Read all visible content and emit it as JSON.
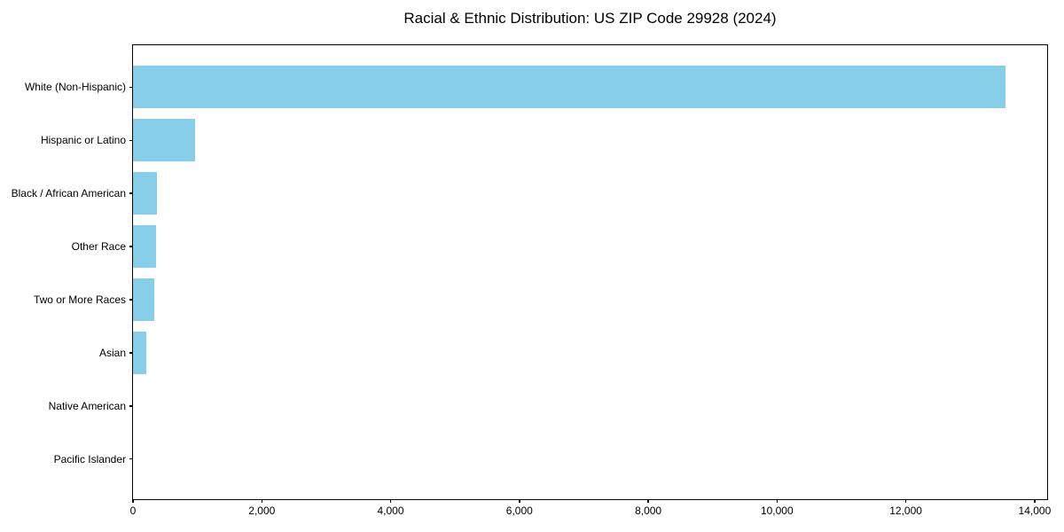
{
  "chart_data": {
    "type": "bar",
    "orientation": "horizontal",
    "title": "Racial & Ethnic Distribution: US ZIP Code 29928 (2024)",
    "categories": [
      "White (Non-Hispanic)",
      "Hispanic or Latino",
      "Black / African American",
      "Other Race",
      "Two or More Races",
      "Asian",
      "Native American",
      "Pacific Islander"
    ],
    "values": [
      13546,
      964,
      372,
      358,
      326,
      207,
      0,
      0
    ],
    "xlabel": "",
    "ylabel": "",
    "xlim": [
      0,
      14222
    ],
    "xticks": [
      0,
      2000,
      4000,
      6000,
      8000,
      10000,
      12000,
      14000
    ],
    "xtick_labels": [
      "0",
      "2,000",
      "4,000",
      "6,000",
      "8,000",
      "10,000",
      "12,000",
      "14,000"
    ],
    "bar_color": "#87CEEB",
    "axis_color": "#000000",
    "background_color": "#FFFFFF",
    "grid": false,
    "legend": "none"
  }
}
